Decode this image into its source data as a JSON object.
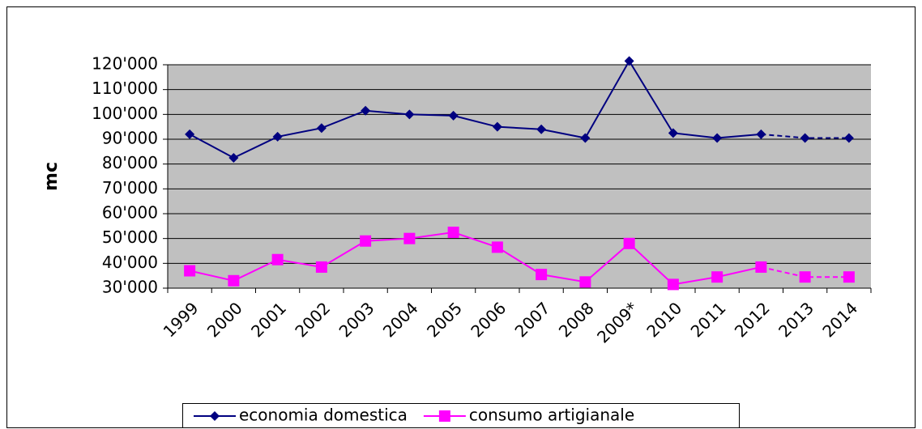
{
  "chart_data": {
    "type": "line",
    "y_label": "mc",
    "categories": [
      "1999",
      "2000",
      "2001",
      "2002",
      "2003",
      "2004",
      "2005",
      "2006",
      "2007",
      "2008",
      "2009*",
      "2010",
      "2011",
      "2012",
      "2013",
      "2014"
    ],
    "series": [
      {
        "name": "economia domestica",
        "color": "#000080",
        "marker": "diamond",
        "values": [
          92000,
          82500,
          91000,
          94500,
          101500,
          100000,
          99500,
          95000,
          94000,
          90500,
          121500,
          92500,
          90500,
          92000,
          90500,
          90500
        ]
      },
      {
        "name": "consumo artigianale",
        "color": "#ff00ff",
        "marker": "square",
        "values": [
          37000,
          33000,
          41500,
          38500,
          49000,
          50000,
          52500,
          46500,
          35500,
          32500,
          48000,
          31500,
          34500,
          38500,
          34500,
          34500
        ]
      }
    ],
    "dashed_from_category": "2012",
    "ylim": [
      30000,
      120000
    ],
    "yticks": [
      {
        "value": 30000,
        "label": "30'000"
      },
      {
        "value": 40000,
        "label": "40'000"
      },
      {
        "value": 50000,
        "label": "50'000"
      },
      {
        "value": 60000,
        "label": "60'000"
      },
      {
        "value": 70000,
        "label": "70'000"
      },
      {
        "value": 80000,
        "label": "80'000"
      },
      {
        "value": 90000,
        "label": "90'000"
      },
      {
        "value": 100000,
        "label": "100'000"
      },
      {
        "value": 110000,
        "label": "110'000"
      },
      {
        "value": 120000,
        "label": "120'000"
      }
    ],
    "grid": true,
    "plot_background": "#c0c0c0",
    "legend": "bottom"
  }
}
